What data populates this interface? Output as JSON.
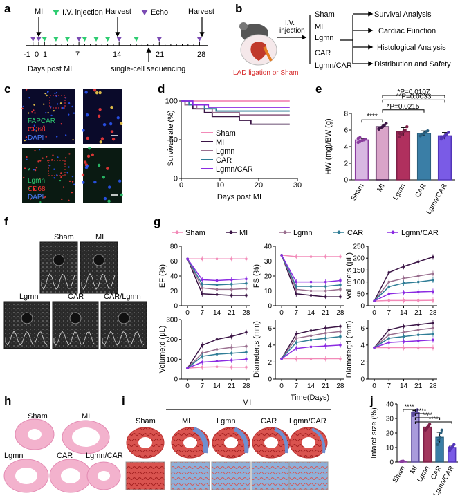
{
  "colors": {
    "sham": "#f28ab8",
    "mi": "#3a1445",
    "lgmn": "#9a6f8f",
    "car": "#2f7d96",
    "lgmn_car": "#8b2be2",
    "inj": "#2ecc71",
    "echo": "#7b4bb3"
  },
  "panel_letters": [
    "a",
    "b",
    "c",
    "d",
    "e",
    "f",
    "g",
    "h",
    "i",
    "j"
  ],
  "a": {
    "mi": "MI",
    "iv": "I.V. injection",
    "harvest": "Harvest",
    "echo": "Echo",
    "harvest2": "Harvest",
    "ticks": [
      "-1",
      "0",
      "1",
      "7",
      "14",
      "21",
      "28"
    ],
    "days": "Days post MI",
    "scseq": "single-cell sequencing"
  },
  "b": {
    "iv": "I.V.",
    "injection": "injection",
    "groups": [
      "Sham",
      "MI",
      "Lgmn",
      "CAR",
      "Lgmn/CAR"
    ],
    "outcomes": [
      "Survival Analysis",
      "Cardiac Function",
      "Histological Analysis",
      "Distribution and Safety"
    ],
    "lad": "LAD ligation or Sham"
  },
  "c": {
    "top_labels": [
      "FAPCAR",
      "CD68",
      "DAPI"
    ],
    "bottom_labels": [
      "Lgmn",
      "CD68",
      "DAPI"
    ]
  },
  "f": {
    "labels": [
      "Sham",
      "MI",
      "Lgmn",
      "CAR",
      "CAR/Lgmn"
    ]
  },
  "h": {
    "labels": [
      "Sham",
      "MI",
      "Lgmn",
      "CAR",
      "Lgmn/CAR"
    ]
  },
  "i": {
    "mi_group": "MI",
    "labels": [
      "Sham",
      "MI",
      "Lgmn",
      "CAR",
      "Lgmn/CAR"
    ]
  },
  "chart_data": [
    {
      "id": "d",
      "type": "line",
      "xlabel": "Days post MI",
      "ylabel": "Survival rate (%)",
      "xlim": [
        0,
        30
      ],
      "ylim": [
        0,
        100
      ],
      "xticks": [
        "0",
        "10",
        "20",
        "30"
      ],
      "yticks": [
        "0",
        "50",
        "100"
      ],
      "legend": [
        "Sham",
        "MI",
        "Lgmn",
        "CAR",
        "Lgmn/CAR"
      ],
      "series": [
        {
          "name": "Sham",
          "points": [
            [
              0,
              100
            ],
            [
              28,
              100
            ]
          ]
        },
        {
          "name": "MI",
          "points": [
            [
              0,
              100
            ],
            [
              1,
              100
            ],
            [
              1,
              95
            ],
            [
              3,
              95
            ],
            [
              3,
              90
            ],
            [
              6,
              90
            ],
            [
              6,
              85
            ],
            [
              8,
              85
            ],
            [
              8,
              80
            ],
            [
              15,
              80
            ],
            [
              15,
              75
            ],
            [
              18,
              75
            ],
            [
              18,
              70
            ],
            [
              28,
              70
            ]
          ]
        },
        {
          "name": "Lgmn",
          "points": [
            [
              0,
              100
            ],
            [
              1,
              100
            ],
            [
              1,
              95
            ],
            [
              4,
              95
            ],
            [
              4,
              90
            ],
            [
              8,
              90
            ],
            [
              8,
              85
            ],
            [
              15,
              85
            ],
            [
              15,
              82
            ],
            [
              28,
              82
            ]
          ]
        },
        {
          "name": "CAR",
          "points": [
            [
              0,
              100
            ],
            [
              2,
              100
            ],
            [
              2,
              95
            ],
            [
              6,
              95
            ],
            [
              6,
              90
            ],
            [
              9,
              90
            ],
            [
              9,
              87
            ],
            [
              28,
              87
            ]
          ]
        },
        {
          "name": "Lgmn/CAR",
          "points": [
            [
              0,
              100
            ],
            [
              3,
              100
            ],
            [
              3,
              95
            ],
            [
              7,
              95
            ],
            [
              7,
              92
            ],
            [
              28,
              92
            ]
          ]
        }
      ]
    },
    {
      "id": "e",
      "type": "bar",
      "ylabel": "HW (mg)/BW (g)",
      "ylim": [
        0,
        8
      ],
      "yticks": [
        "0",
        "2",
        "4",
        "6",
        "8"
      ],
      "categories": [
        "Sham",
        "MI",
        "Lgmn",
        "CAR",
        "Lgmn/CAR"
      ],
      "values": [
        4.8,
        6.4,
        5.8,
        5.6,
        5.3
      ],
      "errors": [
        0.2,
        0.3,
        0.5,
        0.3,
        0.4
      ],
      "points": [
        [
          4.5,
          4.6,
          4.7,
          4.8,
          4.9,
          5.0,
          5.1,
          4.7
        ],
        [
          6.1,
          6.3,
          6.4,
          6.6,
          6.8,
          6.2
        ],
        [
          5.2,
          5.5,
          5.8,
          6.0,
          6.4,
          5.6
        ],
        [
          5.3,
          5.5,
          5.6,
          5.8,
          5.9
        ],
        [
          4.9,
          5.1,
          5.3,
          5.5,
          5.7,
          5.2
        ]
      ],
      "annotations": [
        {
          "text": "****",
          "from": 0,
          "to": 1,
          "level": 6.9
        },
        {
          "text": "*P=0.0215",
          "from": 1,
          "to": 3,
          "level": 7.6
        },
        {
          "text": "**P=0.0033",
          "from": 1,
          "to": 4,
          "level": 8.3
        },
        {
          "text": "*P=0.0107",
          "from": 1,
          "to": 4,
          "level": 9.0
        }
      ]
    },
    {
      "id": "g",
      "type": "line",
      "legend": [
        "Sham",
        "MI",
        "Lgmn",
        "CAR",
        "Lgmn/CAR"
      ],
      "x": [
        0,
        7,
        14,
        21,
        28
      ],
      "xlabel_shared": "Time(Days)",
      "panels": [
        {
          "ylabel": "EF (%)",
          "ylim": [
            0,
            80
          ],
          "yticks": [
            "0",
            "20",
            "40",
            "60",
            "80"
          ],
          "series": [
            [
              63,
              63,
              63,
              63,
              63
            ],
            [
              63,
              16,
              15,
              14,
              14
            ],
            [
              63,
              24,
              22,
              22,
              23
            ],
            [
              63,
              29,
              28,
              29,
              30
            ],
            [
              63,
              35,
              34,
              35,
              36
            ]
          ]
        },
        {
          "ylabel": "FS (%)",
          "ylim": [
            0,
            40
          ],
          "yticks": [
            "0",
            "10",
            "20",
            "30",
            "40"
          ],
          "series": [
            [
              34,
              33,
              33,
              33,
              33
            ],
            [
              34,
              8,
              7,
              6,
              6
            ],
            [
              34,
              11,
              10,
              10,
              11
            ],
            [
              34,
              13,
              13,
              13,
              14
            ],
            [
              34,
              16,
              16,
              16,
              17
            ]
          ]
        },
        {
          "ylabel": "Volume;s (μL)",
          "ylim": [
            0,
            250
          ],
          "yticks": [
            "0",
            "50",
            "100",
            "150",
            "200",
            "250"
          ],
          "series": [
            [
              20,
              22,
              22,
              22,
              23
            ],
            [
              20,
              140,
              165,
              185,
              205
            ],
            [
              20,
              100,
              115,
              125,
              135
            ],
            [
              20,
              80,
              95,
              100,
              108
            ],
            [
              20,
              50,
              55,
              58,
              60
            ]
          ]
        },
        {
          "ylabel": "Volume;d (μL)",
          "ylim": [
            0,
            300
          ],
          "yticks": [
            "0",
            "100",
            "200",
            "300"
          ],
          "series": [
            [
              55,
              60,
              62,
              60,
              60
            ],
            [
              55,
              170,
              200,
              215,
              235
            ],
            [
              55,
              130,
              150,
              160,
              165
            ],
            [
              55,
              115,
              125,
              130,
              135
            ],
            [
              55,
              85,
              90,
              95,
              100
            ]
          ]
        },
        {
          "ylabel": "Diameter;s (mm)",
          "ylim": [
            0,
            7
          ],
          "yticks": [
            "0",
            "2",
            "4",
            "6"
          ],
          "series": [
            [
              2.4,
              2.4,
              2.4,
              2.4,
              2.4
            ],
            [
              2.4,
              5.3,
              5.7,
              6.0,
              6.2
            ],
            [
              2.4,
              4.8,
              5.1,
              5.4,
              5.6
            ],
            [
              2.4,
              4.3,
              4.6,
              4.8,
              5.0
            ],
            [
              2.4,
              3.6,
              3.8,
              3.9,
              4.0
            ]
          ]
        },
        {
          "ylabel": "Diameter;d (mm)",
          "ylim": [
            0,
            7
          ],
          "yticks": [
            "0",
            "2",
            "4",
            "6"
          ],
          "series": [
            [
              3.7,
              3.7,
              3.7,
              3.7,
              3.7
            ],
            [
              3.7,
              5.8,
              6.2,
              6.4,
              6.6
            ],
            [
              3.7,
              5.2,
              5.5,
              5.8,
              6.0
            ],
            [
              3.7,
              4.8,
              5.0,
              5.2,
              5.3
            ],
            [
              3.7,
              4.3,
              4.4,
              4.5,
              4.6
            ]
          ]
        }
      ],
      "xticks": [
        "0",
        "7",
        "14",
        "21",
        "28"
      ]
    },
    {
      "id": "j",
      "type": "bar",
      "ylabel": "Infarct size (%)",
      "ylim": [
        0,
        40
      ],
      "yticks": [
        "0",
        "10",
        "20",
        "30",
        "40"
      ],
      "categories": [
        "Sham",
        "MI",
        "Lgmn",
        "CAR",
        "Lgmn/CAR"
      ],
      "values": [
        0.5,
        34,
        24,
        17,
        10
      ],
      "errors": [
        0.2,
        1.5,
        1.5,
        3.5,
        1.5
      ],
      "points": [
        [
          0.4,
          0.5,
          0.6
        ],
        [
          32,
          33,
          34,
          35,
          36,
          34
        ],
        [
          22,
          23,
          24,
          25,
          26
        ],
        [
          12,
          15,
          17,
          20,
          22
        ],
        [
          8,
          9,
          10,
          11,
          12,
          10
        ]
      ],
      "annotations": [
        "****",
        "****",
        "****",
        "****"
      ]
    }
  ]
}
